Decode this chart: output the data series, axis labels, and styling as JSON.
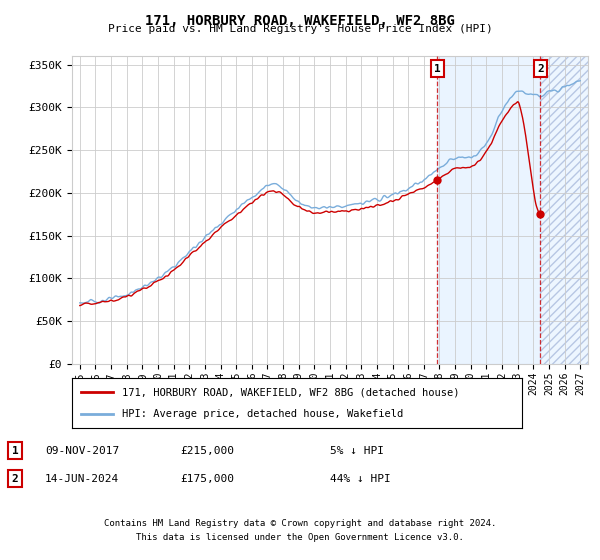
{
  "title": "171, HORBURY ROAD, WAKEFIELD, WF2 8BG",
  "subtitle": "Price paid vs. HM Land Registry's House Price Index (HPI)",
  "ylabel_ticks": [
    "£0",
    "£50K",
    "£100K",
    "£150K",
    "£200K",
    "£250K",
    "£300K",
    "£350K"
  ],
  "ytick_values": [
    0,
    50000,
    100000,
    150000,
    200000,
    250000,
    300000,
    350000
  ],
  "ylim": [
    0,
    360000
  ],
  "xlim_start": 1994.5,
  "xlim_end": 2027.5,
  "sale1_date": "09-NOV-2017",
  "sale1_x": 2017.86,
  "sale1_price": 215000,
  "sale1_label": "5% ↓ HPI",
  "sale2_date": "14-JUN-2024",
  "sale2_x": 2024.45,
  "sale2_price": 175000,
  "sale2_label": "44% ↓ HPI",
  "legend_line1": "171, HORBURY ROAD, WAKEFIELD, WF2 8BG (detached house)",
  "legend_line2": "HPI: Average price, detached house, Wakefield",
  "footnote1": "Contains HM Land Registry data © Crown copyright and database right 2024.",
  "footnote2": "This data is licensed under the Open Government Licence v3.0.",
  "line_color_property": "#cc0000",
  "line_color_hpi": "#7aaddb",
  "shade_color_solid": "#ddeeff",
  "shade_color_hatch": "#ddeeff",
  "grid_color": "#cccccc",
  "bg_color": "#ffffff",
  "figsize": [
    6.0,
    5.6
  ],
  "dpi": 100
}
